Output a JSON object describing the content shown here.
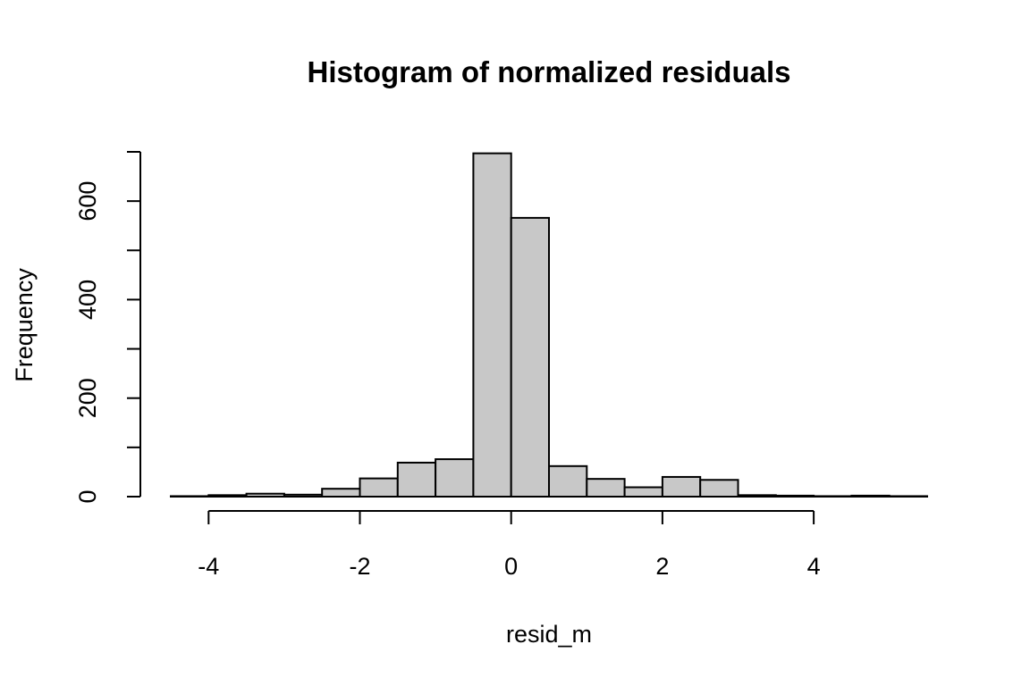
{
  "chart_data": {
    "type": "bar",
    "title": "Histogram of normalized residuals",
    "xlabel": "resid_m",
    "ylabel": "Frequency",
    "xlim": [
      -4.5,
      5.5
    ],
    "ylim": [
      0,
      700
    ],
    "x_ticks": [
      -4,
      -2,
      0,
      2,
      4
    ],
    "y_ticks": [
      0,
      200,
      400,
      600
    ],
    "y_minor_ticks": [
      100,
      300,
      500,
      700
    ],
    "bin_width": 0.5,
    "bins": [
      {
        "x0": -4.5,
        "x1": -4.0,
        "count": 1
      },
      {
        "x0": -4.0,
        "x1": -3.5,
        "count": 3
      },
      {
        "x0": -3.5,
        "x1": -3.0,
        "count": 6
      },
      {
        "x0": -3.0,
        "x1": -2.5,
        "count": 4
      },
      {
        "x0": -2.5,
        "x1": -2.0,
        "count": 16
      },
      {
        "x0": -2.0,
        "x1": -1.5,
        "count": 37
      },
      {
        "x0": -1.5,
        "x1": -1.0,
        "count": 69
      },
      {
        "x0": -1.0,
        "x1": -0.5,
        "count": 76
      },
      {
        "x0": -0.5,
        "x1": 0.0,
        "count": 697
      },
      {
        "x0": 0.0,
        "x1": 0.5,
        "count": 566
      },
      {
        "x0": 0.5,
        "x1": 1.0,
        "count": 62
      },
      {
        "x0": 1.0,
        "x1": 1.5,
        "count": 36
      },
      {
        "x0": 1.5,
        "x1": 2.0,
        "count": 19
      },
      {
        "x0": 2.0,
        "x1": 2.5,
        "count": 40
      },
      {
        "x0": 2.5,
        "x1": 3.0,
        "count": 34
      },
      {
        "x0": 3.0,
        "x1": 3.5,
        "count": 3
      },
      {
        "x0": 3.5,
        "x1": 4.0,
        "count": 2
      },
      {
        "x0": 4.0,
        "x1": 4.5,
        "count": 1
      },
      {
        "x0": 4.5,
        "x1": 5.0,
        "count": 2
      },
      {
        "x0": 5.0,
        "x1": 5.5,
        "count": 1
      }
    ],
    "bar_color": "#c8c8c8",
    "grid": false,
    "legend": "none"
  }
}
